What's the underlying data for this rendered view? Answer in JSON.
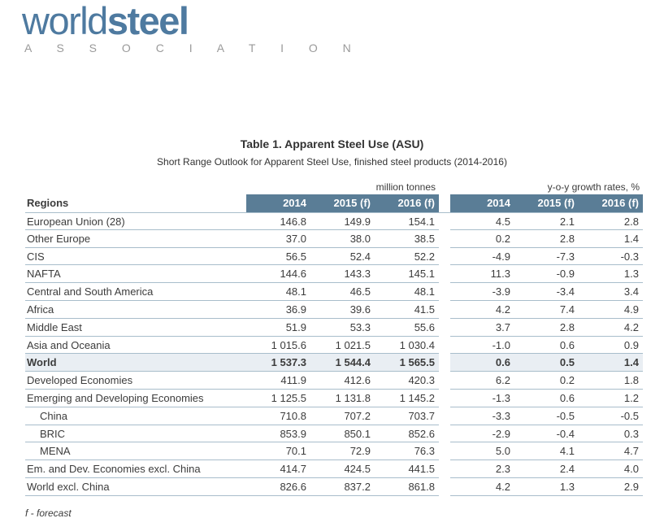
{
  "logo": {
    "word1": "world",
    "word2": "steel",
    "subtitle": "A S S O C I A T I O N",
    "brand_color": "#4e7aa0"
  },
  "header": {
    "title": "Table 1. Apparent Steel Use (ASU)",
    "subtitle": "Short Range Outlook for Apparent Steel Use, finished steel products (2014-2016)"
  },
  "table": {
    "corner_label": "Regions",
    "group1_label": "million tonnes",
    "group2_label": "y-o-y growth rates, %",
    "col_headers_mt": [
      "2014",
      "2015 (f)",
      "2016 (f)"
    ],
    "col_headers_gr": [
      "2014",
      "2015 (f)",
      "2016 (f)"
    ],
    "header_bg": "#5a7d96",
    "highlight_bg": "#e9eef3",
    "border_color": "#a8bdcb",
    "rows": [
      {
        "name": "European Union (28)",
        "mt": [
          "146.8",
          "149.9",
          "154.1"
        ],
        "gr": [
          "4.5",
          "2.1",
          "2.8"
        ]
      },
      {
        "name": "Other Europe",
        "mt": [
          "37.0",
          "38.0",
          "38.5"
        ],
        "gr": [
          "0.2",
          "2.8",
          "1.4"
        ]
      },
      {
        "name": "CIS",
        "mt": [
          "56.5",
          "52.4",
          "52.2"
        ],
        "gr": [
          "-4.9",
          "-7.3",
          "-0.3"
        ]
      },
      {
        "name": "NAFTA",
        "mt": [
          "144.6",
          "143.3",
          "145.1"
        ],
        "gr": [
          "11.3",
          "-0.9",
          "1.3"
        ]
      },
      {
        "name": "Central and South America",
        "mt": [
          "48.1",
          "46.5",
          "48.1"
        ],
        "gr": [
          "-3.9",
          "-3.4",
          "3.4"
        ]
      },
      {
        "name": "Africa",
        "mt": [
          "36.9",
          "39.6",
          "41.5"
        ],
        "gr": [
          "4.2",
          "7.4",
          "4.9"
        ]
      },
      {
        "name": "Middle East",
        "mt": [
          "51.9",
          "53.3",
          "55.6"
        ],
        "gr": [
          "3.7",
          "2.8",
          "4.2"
        ]
      },
      {
        "name": "Asia and Oceania",
        "mt": [
          "1 015.6",
          "1 021.5",
          "1 030.4"
        ],
        "gr": [
          "-1.0",
          "0.6",
          "0.9"
        ]
      },
      {
        "name": "World",
        "mt": [
          "1 537.3",
          "1 544.4",
          "1 565.5"
        ],
        "gr": [
          "0.6",
          "0.5",
          "1.4"
        ]
      },
      {
        "name": "Developed Economies",
        "mt": [
          "411.9",
          "412.6",
          "420.3"
        ],
        "gr": [
          "6.2",
          "0.2",
          "1.8"
        ]
      },
      {
        "name": "Emerging and Developing Economies",
        "mt": [
          "1 125.5",
          "1 131.8",
          "1 145.2"
        ],
        "gr": [
          "-1.3",
          "0.6",
          "1.2"
        ]
      },
      {
        "name": "China",
        "mt": [
          "710.8",
          "707.2",
          "703.7"
        ],
        "gr": [
          "-3.3",
          "-0.5",
          "-0.5"
        ]
      },
      {
        "name": "BRIC",
        "mt": [
          "853.9",
          "850.1",
          "852.6"
        ],
        "gr": [
          "-2.9",
          "-0.4",
          "0.3"
        ]
      },
      {
        "name": "MENA",
        "mt": [
          "70.1",
          "72.9",
          "76.3"
        ],
        "gr": [
          "5.0",
          "4.1",
          "4.7"
        ]
      },
      {
        "name": "Em. and Dev. Economies excl. China",
        "mt": [
          "414.7",
          "424.5",
          "441.5"
        ],
        "gr": [
          "2.3",
          "2.4",
          "4.0"
        ]
      },
      {
        "name": "World excl. China",
        "mt": [
          "826.6",
          "837.2",
          "861.8"
        ],
        "gr": [
          "4.2",
          "1.3",
          "2.9"
        ]
      }
    ]
  },
  "footnote": "f - forecast"
}
